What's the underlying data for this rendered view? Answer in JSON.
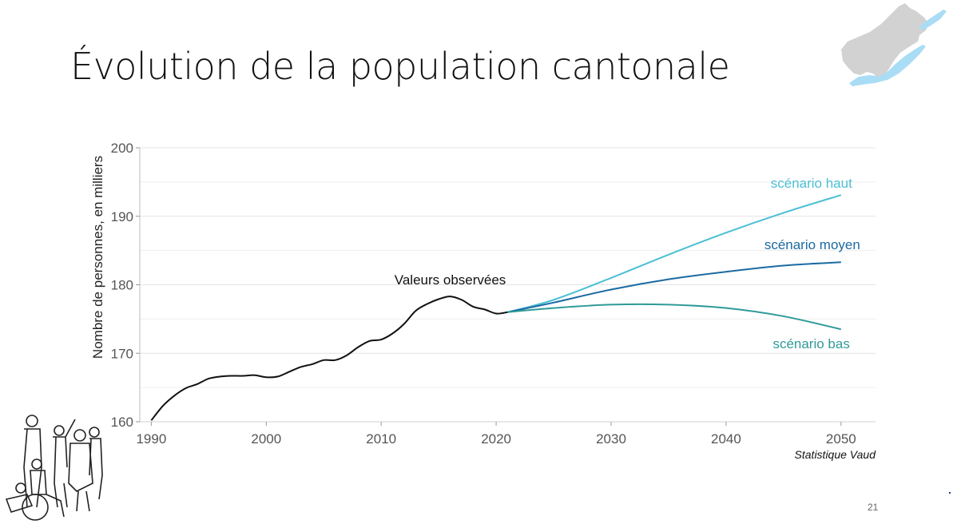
{
  "slide": {
    "title": "Évolution de la population cantonale",
    "page_number": "21"
  },
  "logo": {
    "icon": "canton-vaud-map-icon",
    "colors": {
      "land": "#d2d2d2",
      "lake": "#a9dcf5"
    }
  },
  "illustration": {
    "icon": "people-group-icon"
  },
  "chart_data": {
    "type": "line",
    "title": "",
    "xlabel": "",
    "ylabel": "Nombre de personnes, en milliers",
    "xlim": [
      1989,
      2053
    ],
    "ylim": [
      160,
      200
    ],
    "x_ticks": [
      1990,
      2000,
      2010,
      2020,
      2030,
      2040,
      2050
    ],
    "y_ticks": [
      160,
      170,
      180,
      190,
      200
    ],
    "grid": true,
    "source": "Statistique Vaud",
    "series": [
      {
        "name": "Valeurs observées",
        "color": "#111111",
        "x": [
          1990,
          1991,
          1992,
          1993,
          1994,
          1995,
          1996,
          1997,
          1998,
          1999,
          2000,
          2001,
          2002,
          2003,
          2004,
          2005,
          2006,
          2007,
          2008,
          2009,
          2010,
          2011,
          2012,
          2013,
          2014,
          2015,
          2016,
          2017,
          2018,
          2019,
          2020,
          2021
        ],
        "y": [
          160.2,
          162.3,
          163.8,
          164.9,
          165.5,
          166.3,
          166.6,
          166.7,
          166.7,
          166.8,
          166.5,
          166.6,
          167.3,
          168.0,
          168.4,
          169.0,
          169.0,
          169.7,
          170.9,
          171.8,
          172.0,
          172.9,
          174.3,
          176.2,
          177.2,
          177.9,
          178.3,
          177.8,
          176.8,
          176.4,
          175.8,
          176.0
        ]
      },
      {
        "name": "scénario haut",
        "color": "#4bbfd4",
        "x": [
          2021,
          2025,
          2030,
          2035,
          2040,
          2045,
          2050
        ],
        "y": [
          176.0,
          177.8,
          181.0,
          184.4,
          187.6,
          190.5,
          193.1
        ]
      },
      {
        "name": "scénario moyen",
        "color": "#1b6aa2",
        "x": [
          2021,
          2025,
          2030,
          2035,
          2040,
          2045,
          2050
        ],
        "y": [
          176.0,
          177.4,
          179.3,
          180.8,
          181.9,
          182.8,
          183.3
        ]
      },
      {
        "name": "scénario bas",
        "color": "#2f9a98",
        "x": [
          2021,
          2025,
          2030,
          2035,
          2040,
          2045,
          2050
        ],
        "y": [
          176.0,
          176.6,
          177.1,
          177.1,
          176.6,
          175.4,
          173.5
        ]
      }
    ]
  }
}
